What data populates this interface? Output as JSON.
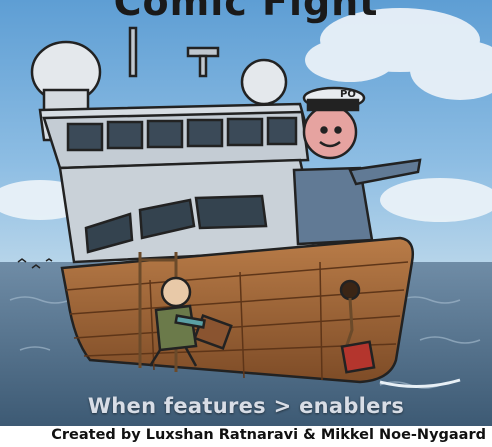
{
  "comic": {
    "title_partial": "Comic Fight",
    "caption": "When features > enablers",
    "cap_badge": "PO",
    "credit": "Created by Luxshan Ratnaravi & Mikkel Noe-Nygaard"
  },
  "colors": {
    "sky": "#7fb2db",
    "sea": "#4d6f8c",
    "hull": "#a46a3d",
    "superstructure": "#c9d1d8"
  }
}
